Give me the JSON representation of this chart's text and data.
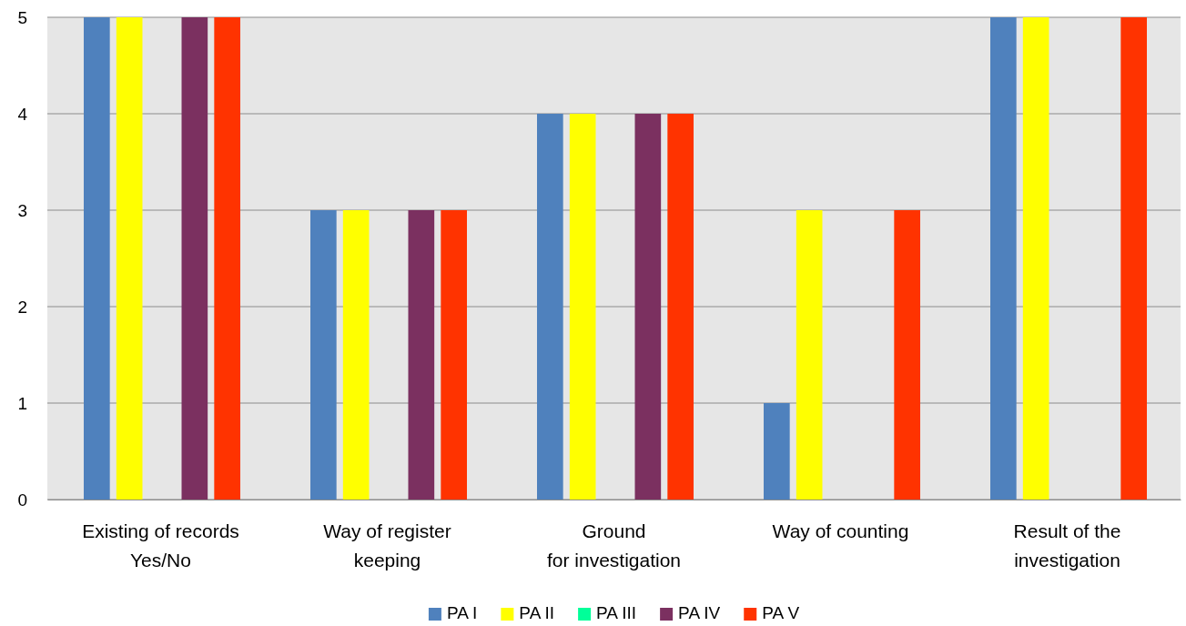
{
  "chart_data": {
    "type": "bar",
    "categories": [
      "Existing of records\nYes/No",
      "Way of register\nkeeping",
      "Ground\nfor investigation",
      "Way of counting",
      "Result of the\ninvestigation"
    ],
    "series": [
      {
        "name": "PA I",
        "color": "#4f81bd",
        "values": [
          5,
          3,
          4,
          1,
          5
        ]
      },
      {
        "name": "PA II",
        "color": "#ffff00",
        "values": [
          5,
          3,
          4,
          3,
          5
        ]
      },
      {
        "name": "PA III",
        "color": "#00ff99",
        "values": [
          0,
          0,
          0,
          0,
          0
        ]
      },
      {
        "name": "PA IV",
        "color": "#7b3060",
        "values": [
          5,
          3,
          4,
          0,
          0
        ]
      },
      {
        "name": "PA V",
        "color": "#ff3300",
        "values": [
          5,
          3,
          4,
          3,
          5
        ]
      }
    ],
    "ylim": [
      0,
      5
    ],
    "yticks": [
      0,
      1,
      2,
      3,
      4,
      5
    ],
    "grid": "y",
    "legend": "bottom"
  }
}
